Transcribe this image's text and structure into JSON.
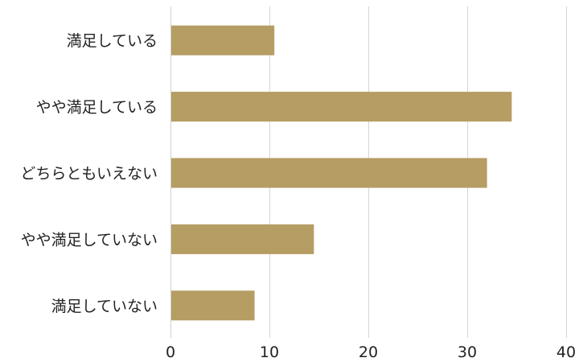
{
  "chart_data": {
    "type": "bar",
    "orientation": "horizontal",
    "categories": [
      "満足している",
      "やや満足している",
      "どちらともいえない",
      "やや満足していない",
      "満足していない"
    ],
    "values": [
      10.5,
      34.5,
      32,
      14.5,
      8.5
    ],
    "xlim": [
      0,
      40
    ],
    "xticks": [
      0,
      10,
      20,
      30,
      40
    ],
    "title": "",
    "xlabel": "",
    "ylabel": "",
    "grid": true,
    "legend": "none",
    "bar_color": "#b59d63"
  }
}
